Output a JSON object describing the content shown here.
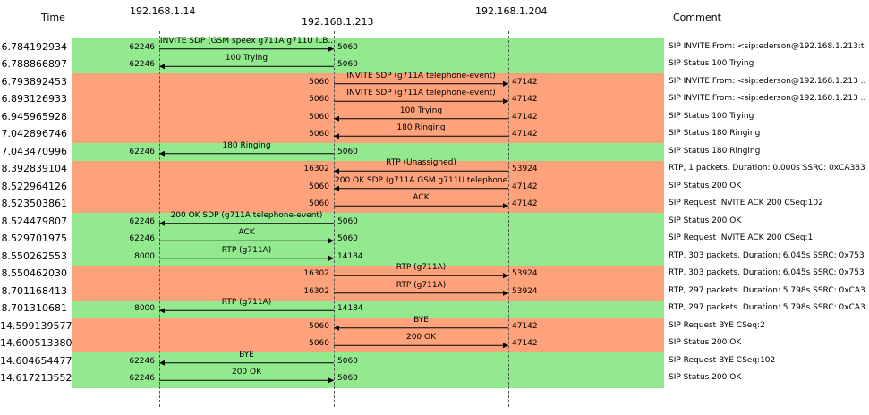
{
  "headers": {
    "time": "Time",
    "comment": "Comment",
    "hosts": [
      "192.168.1.14",
      "192.168.1.213",
      "192.168.1.204"
    ]
  },
  "colors": {
    "green": "#93EA8E",
    "orange": "#FDA27B",
    "arrow": "#000000"
  },
  "rows": [
    {
      "time": "6.784192934",
      "color": "green",
      "from": 0,
      "to": 1,
      "label": "INVITE SDP (GSM speex g711A g711U iLB...",
      "src_port": "62246",
      "dst_port": "5060",
      "comment": "SIP INVITE From: <sip:ederson@192.168.1.213:t..."
    },
    {
      "time": "6.788866897",
      "color": "green",
      "from": 1,
      "to": 0,
      "label": "100 Trying",
      "src_port": "5060",
      "dst_port": "62246",
      "comment": "SIP Status 100 Trying"
    },
    {
      "time": "6.793892453",
      "color": "orange",
      "from": 1,
      "to": 2,
      "label": "INVITE SDP (g711A telephone-event)",
      "src_port": "5060",
      "dst_port": "47142",
      "comment": "SIP INVITE From: <sip:ederson@192.168.1.213 ..."
    },
    {
      "time": "6.893126933",
      "color": "orange",
      "from": 1,
      "to": 2,
      "label": "INVITE SDP (g711A telephone-event)",
      "src_port": "5060",
      "dst_port": "47142",
      "comment": "SIP INVITE From: <sip:ederson@192.168.1.213 ..."
    },
    {
      "time": "6.945965928",
      "color": "orange",
      "from": 2,
      "to": 1,
      "label": "100 Trying",
      "src_port": "47142",
      "dst_port": "5060",
      "comment": "SIP Status 100 Trying"
    },
    {
      "time": "7.042896746",
      "color": "orange",
      "from": 2,
      "to": 1,
      "label": "180 Ringing",
      "src_port": "47142",
      "dst_port": "5060",
      "comment": "SIP Status 180 Ringing"
    },
    {
      "time": "7.043470996",
      "color": "green",
      "from": 1,
      "to": 0,
      "label": "180 Ringing",
      "src_port": "5060",
      "dst_port": "62246",
      "comment": "SIP Status 180 Ringing"
    },
    {
      "time": "8.392839104",
      "color": "orange",
      "from": 2,
      "to": 1,
      "label": "RTP (Unassigned)",
      "src_port": "53924",
      "dst_port": "16302",
      "comment": "RTP, 1 packets. Duration: 0.000s SSRC: 0xCA383..."
    },
    {
      "time": "8.522964126",
      "color": "orange",
      "from": 2,
      "to": 1,
      "label": "200 OK SDP (g711A GSM g711U telephone...",
      "src_port": "47142",
      "dst_port": "5060",
      "comment": "SIP Status 200 OK"
    },
    {
      "time": "8.523503861",
      "color": "orange",
      "from": 1,
      "to": 2,
      "label": "ACK",
      "src_port": "5060",
      "dst_port": "47142",
      "comment": "SIP Request INVITE ACK 200 CSeq:102"
    },
    {
      "time": "8.524479807",
      "color": "green",
      "from": 1,
      "to": 0,
      "label": "200 OK SDP (g711A telephone-event)",
      "src_port": "5060",
      "dst_port": "62246",
      "comment": "SIP Status 200 OK"
    },
    {
      "time": "8.529701975",
      "color": "green",
      "from": 0,
      "to": 1,
      "label": "ACK",
      "src_port": "62246",
      "dst_port": "5060",
      "comment": "SIP Request INVITE ACK 200 CSeq:1"
    },
    {
      "time": "8.550262553",
      "color": "green",
      "from": 0,
      "to": 1,
      "label": "RTP (g711A)",
      "src_port": "8000",
      "dst_port": "14184",
      "comment": "RTP, 303 packets. Duration: 6.045s SSRC: 0x753F..."
    },
    {
      "time": "8.550462030",
      "color": "orange",
      "from": 1,
      "to": 2,
      "label": "RTP (g711A)",
      "src_port": "16302",
      "dst_port": "53924",
      "comment": "RTP, 303 packets. Duration: 6.045s SSRC: 0x753F..."
    },
    {
      "time": "8.701168413",
      "color": "orange",
      "from": 1,
      "to": 2,
      "label": "RTP (g711A)",
      "src_port": "16302",
      "dst_port": "53924",
      "comment": "RTP, 297 packets. Duration: 5.798s SSRC: 0xCA3..."
    },
    {
      "time": "8.701310681",
      "color": "green",
      "from": 1,
      "to": 0,
      "label": "RTP (g711A)",
      "src_port": "14184",
      "dst_port": "8000",
      "comment": "RTP, 297 packets. Duration: 5.798s SSRC: 0xCA3..."
    },
    {
      "time": "14.599139577",
      "color": "orange",
      "from": 2,
      "to": 1,
      "label": "BYE",
      "src_port": "47142",
      "dst_port": "5060",
      "comment": "SIP Request BYE CSeq:2"
    },
    {
      "time": "14.600513380",
      "color": "orange",
      "from": 1,
      "to": 2,
      "label": "200 OK",
      "src_port": "5060",
      "dst_port": "47142",
      "comment": "SIP Status 200 OK"
    },
    {
      "time": "14.604654477",
      "color": "green",
      "from": 1,
      "to": 0,
      "label": "BYE",
      "src_port": "5060",
      "dst_port": "62246",
      "comment": "SIP Request BYE CSeq:102"
    },
    {
      "time": "14.617213552",
      "color": "green",
      "from": 0,
      "to": 1,
      "label": "200 OK",
      "src_port": "62246",
      "dst_port": "5060",
      "comment": "SIP Status 200 OK"
    }
  ]
}
